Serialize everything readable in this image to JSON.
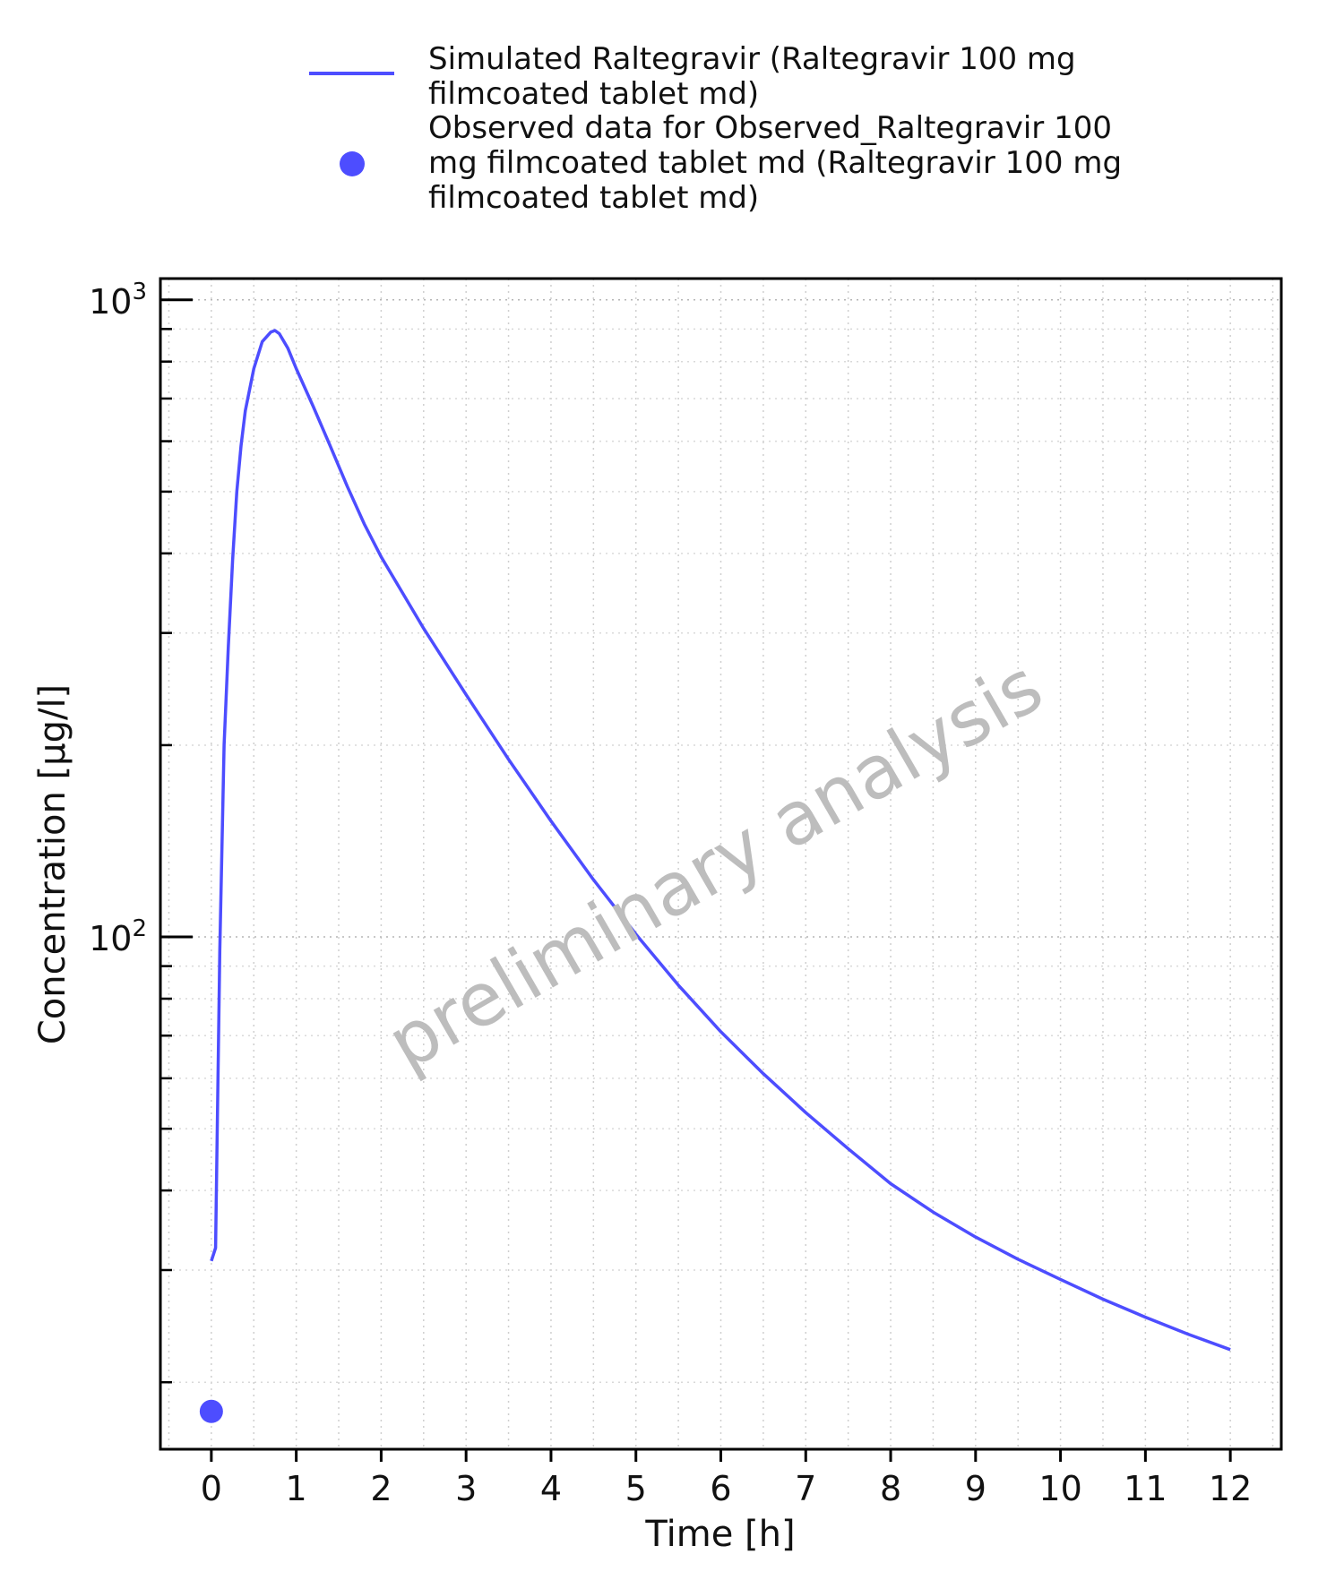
{
  "chart_data": {
    "type": "line",
    "xlabel": "Time [h]",
    "ylabel": "Concentration [µg/l]",
    "yscale": "log",
    "xlim": [
      -0.6,
      12.6
    ],
    "ylim": [
      15.7,
      1080
    ],
    "x_ticks": [
      "0",
      "1",
      "2",
      "3",
      "4",
      "5",
      "6",
      "7",
      "8",
      "9",
      "10",
      "11",
      "12"
    ],
    "y_ticks": [
      {
        "value": 100,
        "base": "10",
        "exp": "2"
      },
      {
        "value": 1000,
        "base": "10",
        "exp": "3"
      }
    ],
    "grid": true,
    "legend_position": "top",
    "watermark": "preliminary analysis",
    "series": [
      {
        "name": "Simulated Raltegravir (Raltegravir 100 mg filmcoated tablet md)",
        "legend_lines": [
          "Simulated Raltegravir (Raltegravir 100 mg",
          "filmcoated tablet md)"
        ],
        "type": "line",
        "color": "#4d4dff",
        "x": [
          0,
          0.05,
          0.1,
          0.15,
          0.2,
          0.25,
          0.3,
          0.35,
          0.4,
          0.5,
          0.6,
          0.7,
          0.75,
          0.8,
          0.9,
          1.0,
          1.2,
          1.4,
          1.6,
          1.8,
          2.0,
          2.5,
          3.0,
          3.5,
          4.0,
          4.5,
          5.0,
          5.5,
          6.0,
          6.5,
          7.0,
          7.5,
          8.0,
          8.5,
          9.0,
          9.5,
          10.0,
          10.5,
          11.0,
          11.5,
          12.0
        ],
        "y": [
          31,
          32.5,
          95,
          200,
          285,
          390,
          500,
          590,
          670,
          780,
          860,
          890,
          895,
          885,
          840,
          780,
          680,
          590,
          510,
          445,
          395,
          305,
          240,
          190,
          152,
          123,
          101,
          84,
          71,
          61,
          53,
          46.5,
          41,
          37,
          33.8,
          31.2,
          29,
          27,
          25.3,
          23.8,
          22.5
        ]
      },
      {
        "name": "Observed data for Observed_Raltegravir 100 mg filmcoated tablet md (Raltegravir 100 mg filmcoated tablet md)",
        "legend_lines": [
          "Observed data for Observed_Raltegravir 100",
          "mg filmcoated tablet md (Raltegravir 100 mg",
          "filmcoated tablet md)"
        ],
        "type": "scatter",
        "color": "#4d4dff",
        "x": [
          0
        ],
        "y": [
          18
        ]
      }
    ]
  }
}
